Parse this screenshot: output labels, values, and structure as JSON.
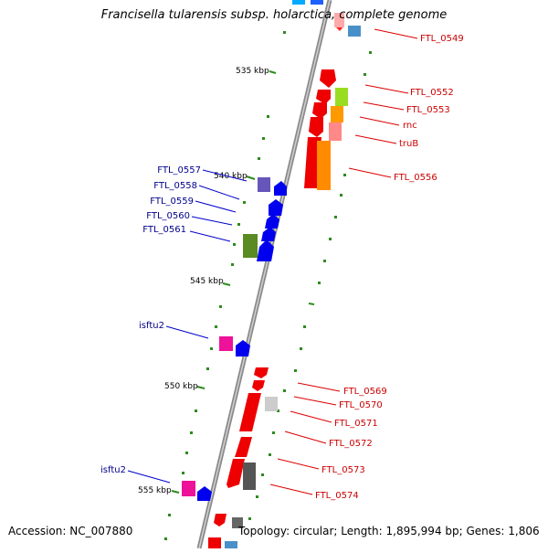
{
  "header": {
    "title": "Francisella tularensis subsp. holarctica, complete genome"
  },
  "footer": {
    "accession": "Accession: NC_007880",
    "topology": "Topology: circular; Length: 1,895,994 bp; Genes: 1,806"
  },
  "scale_labels": [
    "535 kbp",
    "540 kbp",
    "545 kbp",
    "550 kbp",
    "555 kbp"
  ],
  "left_labels": [
    "FTL_0557",
    "FTL_0558",
    "FTL_0559",
    "FTL_0560",
    "FTL_0561",
    "isftu2",
    "isftu2"
  ],
  "right_labels": [
    "FTL_0549",
    "FTL_0552",
    "FTL_0553",
    "rnc",
    "truB",
    "FTL_0556",
    "FTL_0569",
    "FTL_0570",
    "FTL_0571",
    "FTL_0572",
    "FTL_0573",
    "FTL_0574"
  ],
  "colors": {
    "red": "#ff0000",
    "blue": "#0000ff",
    "label_blue": "#00008b",
    "label_red": "#cc0000",
    "tick_green": "#2e8b1e",
    "backbone": "#888888"
  }
}
